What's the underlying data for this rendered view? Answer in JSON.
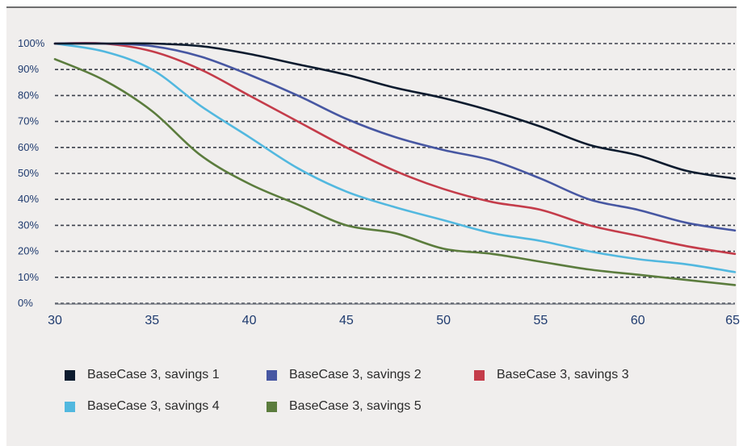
{
  "chart_data": {
    "type": "line",
    "title": "",
    "xlabel": "",
    "ylabel": "",
    "xlim": [
      30,
      65
    ],
    "ylim": [
      0,
      100
    ],
    "x_ticks": [
      "30",
      "35",
      "40",
      "45",
      "50",
      "55",
      "60",
      "65"
    ],
    "y_ticks": [
      "0%",
      "10%",
      "20%",
      "30%",
      "40%",
      "50%",
      "60%",
      "70%",
      "80%",
      "90%",
      "100%"
    ],
    "grid": true,
    "legend_position": "bottom",
    "x": [
      30,
      32.5,
      35,
      37.5,
      40,
      42.5,
      45,
      47.5,
      50,
      52.5,
      55,
      57.5,
      60,
      62.5,
      65
    ],
    "series": [
      {
        "name": "BaseCase 3, savings 1",
        "color": "#0c1b2e",
        "values": [
          100,
          100,
          100,
          99,
          96,
          92,
          88,
          83,
          79,
          74,
          68,
          61,
          57,
          51,
          48
        ]
      },
      {
        "name": "BaseCase 3, savings 2",
        "color": "#4757a2",
        "values": [
          100,
          100,
          99,
          95,
          88,
          80,
          71,
          64,
          59,
          55,
          48,
          40,
          36,
          31,
          28
        ]
      },
      {
        "name": "BaseCase 3, savings 3",
        "color": "#c43c4a",
        "values": [
          100,
          100,
          97,
          90,
          80,
          70,
          60,
          51,
          44,
          39,
          36,
          30,
          26,
          22,
          19
        ]
      },
      {
        "name": "BaseCase 3, savings 4",
        "color": "#52b8df",
        "values": [
          100,
          97,
          90,
          76,
          64,
          52,
          43,
          37,
          32,
          27,
          24,
          20,
          17,
          15,
          12
        ]
      },
      {
        "name": "BaseCase 3, savings 5",
        "color": "#5b7c3d",
        "values": [
          94,
          86,
          74,
          57,
          46,
          38,
          30,
          27,
          21,
          19,
          16,
          13,
          11,
          9,
          7
        ]
      }
    ]
  }
}
